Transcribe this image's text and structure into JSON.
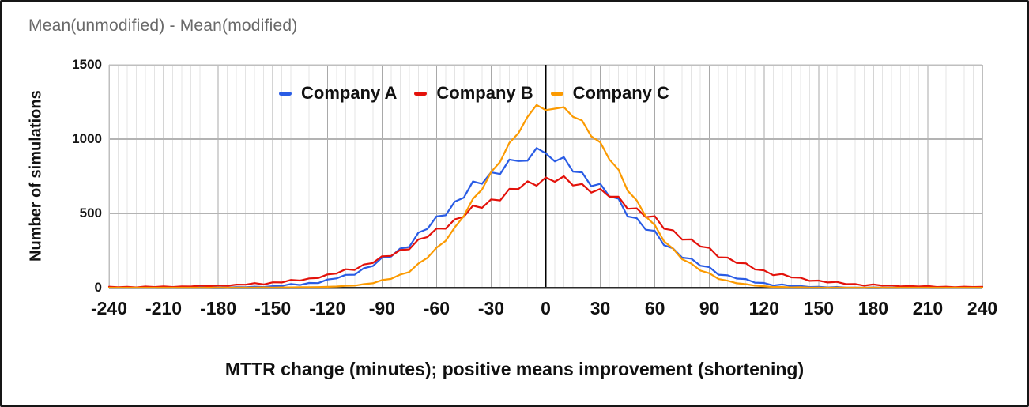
{
  "title": "Mean(unmodified) - Mean(modified)",
  "colors": {
    "series_a": "#2a5ce5",
    "series_b": "#e3120b",
    "series_c": "#fb9a01",
    "grid_minor": "#e4e4e4",
    "grid_major": "#a9a9a9",
    "grid_horizontal": "#b3b3b3",
    "plot_border": "#bfbfbf",
    "axis_line": "#2b2b2b",
    "zero_line": "#000000",
    "title_text": "#696969",
    "label_text": "#101010"
  },
  "chart_data": {
    "type": "line",
    "title": "Mean(unmodified) - Mean(modified)",
    "xlabel": "MTTR change (minutes); positive means improvement (shortening)",
    "ylabel": "Number of simulations",
    "xlim": [
      -240,
      240
    ],
    "ylim": [
      0,
      1500
    ],
    "x_ticks": [
      -240,
      -210,
      -180,
      -150,
      -120,
      -90,
      -60,
      -30,
      0,
      30,
      60,
      90,
      120,
      150,
      180,
      210,
      240
    ],
    "y_ticks": [
      0,
      500,
      1000,
      1500
    ],
    "minor_grid_step": 5,
    "major_grid_step": 30,
    "grid": true,
    "zero_line": true,
    "legend_position": "top-center-inside",
    "x": [
      -240,
      -235,
      -230,
      -225,
      -220,
      -215,
      -210,
      -205,
      -200,
      -195,
      -190,
      -185,
      -180,
      -175,
      -170,
      -165,
      -160,
      -155,
      -150,
      -145,
      -140,
      -135,
      -130,
      -125,
      -120,
      -115,
      -110,
      -105,
      -100,
      -95,
      -90,
      -85,
      -80,
      -75,
      -70,
      -65,
      -60,
      -55,
      -50,
      -45,
      -40,
      -35,
      -30,
      -25,
      -20,
      -15,
      -10,
      -5,
      0,
      5,
      10,
      15,
      20,
      25,
      30,
      35,
      40,
      45,
      50,
      55,
      60,
      65,
      70,
      75,
      80,
      85,
      90,
      95,
      100,
      105,
      110,
      115,
      120,
      125,
      130,
      135,
      140,
      145,
      150,
      155,
      160,
      165,
      170,
      175,
      180,
      185,
      190,
      195,
      200,
      205,
      210,
      215,
      220,
      225,
      230,
      235,
      240
    ],
    "series": [
      {
        "name": "Company A",
        "color": "#2a5ce5",
        "values": [
          0,
          0,
          0,
          0,
          0,
          0,
          2,
          0,
          1,
          1,
          3,
          1,
          2,
          1,
          4,
          3,
          7,
          5,
          10,
          12,
          25,
          18,
          32,
          31,
          55,
          62,
          86,
          87,
          131,
          145,
          202,
          209,
          264,
          274,
          370,
          396,
          480,
          487,
          579,
          606,
          715,
          699,
          776,
          765,
          862,
          852,
          855,
          940,
          905,
          850,
          878,
          781,
          776,
          683,
          699,
          614,
          599,
          479,
          468,
          390,
          382,
          286,
          264,
          202,
          195,
          148,
          138,
          87,
          83,
          61,
          58,
          34,
          32,
          15,
          22,
          11,
          11,
          5,
          6,
          2,
          5,
          1,
          1,
          0,
          2,
          0,
          1,
          0,
          0,
          0,
          0,
          1,
          0,
          0,
          0,
          0,
          0
        ]
      },
      {
        "name": "Company B",
        "color": "#e3120b",
        "values": [
          7,
          3,
          6,
          2,
          8,
          5,
          9,
          5,
          9,
          8,
          14,
          10,
          15,
          13,
          21,
          20,
          31,
          22,
          36,
          35,
          52,
          48,
          62,
          65,
          89,
          95,
          124,
          119,
          156,
          166,
          211,
          214,
          253,
          258,
          325,
          341,
          398,
          397,
          460,
          477,
          552,
          537,
          594,
          587,
          665,
          664,
          716,
          686,
          742,
          713,
          750,
          688,
          698,
          640,
          665,
          612,
          612,
          531,
          534,
          475,
          481,
          397,
          386,
          324,
          325,
          277,
          268,
          204,
          202,
          166,
          164,
          123,
          116,
          84,
          92,
          69,
          67,
          46,
          48,
          35,
          39,
          24,
          25,
          14,
          22,
          14,
          15,
          9,
          11,
          8,
          11,
          5,
          7,
          3,
          7,
          5,
          6
        ]
      },
      {
        "name": "Company C",
        "color": "#fb9a01",
        "values": [
          0,
          0,
          0,
          0,
          0,
          0,
          0,
          0,
          0,
          0,
          0,
          0,
          1,
          0,
          1,
          1,
          1,
          2,
          1,
          2,
          2,
          3,
          3,
          4,
          6,
          8,
          12,
          14,
          24,
          30,
          51,
          59,
          88,
          105,
          162,
          201,
          269,
          315,
          406,
          482,
          598,
          661,
          778,
          848,
          975,
          1040,
          1150,
          1230,
          1195,
          1205,
          1215,
          1150,
          1125,
          1019,
          978,
          863,
          794,
          653,
          588,
          479,
          421,
          313,
          263,
          191,
          162,
          115,
          97,
          58,
          47,
          30,
          24,
          14,
          10,
          5,
          5,
          2,
          3,
          1,
          1,
          0,
          1,
          0,
          0,
          0,
          1,
          0,
          0,
          0,
          0,
          0,
          0,
          0,
          0,
          0,
          0,
          0,
          0
        ]
      }
    ]
  }
}
